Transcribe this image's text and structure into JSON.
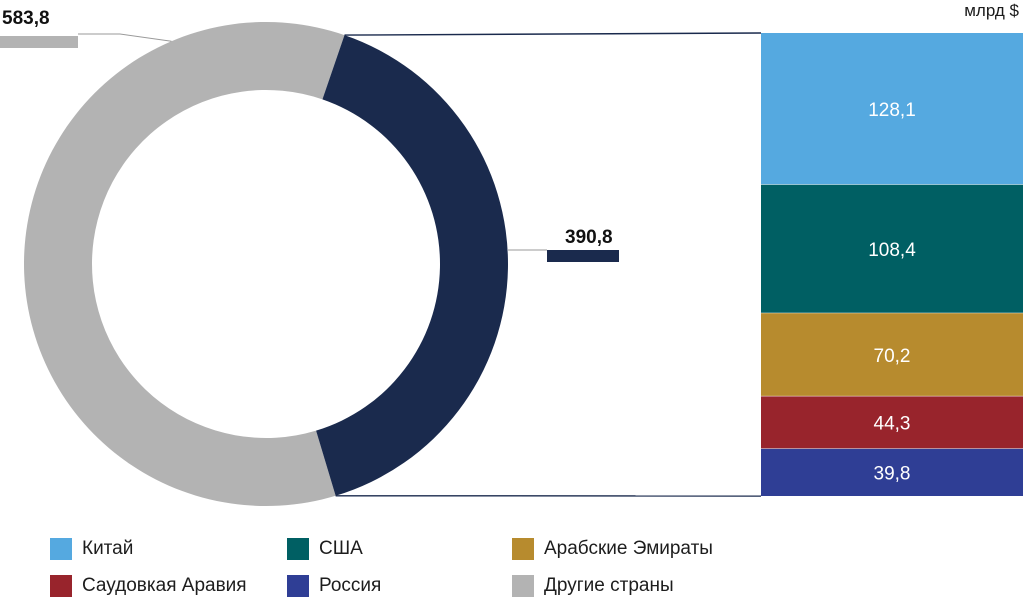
{
  "chart_data": {
    "type": "pie",
    "unit": "млрд $",
    "donut": {
      "slices": [
        {
          "name": "Другие страны",
          "value": 583.8,
          "label": "583,8",
          "color": "#b3b3b3"
        },
        {
          "name": "top5",
          "value": 390.8,
          "label": "390,8",
          "color": "#1a2a4d"
        }
      ]
    },
    "stack": {
      "segments": [
        {
          "name": "Китай",
          "value": 128.1,
          "label": "128,1",
          "color": "#55a9e0"
        },
        {
          "name": "США",
          "value": 108.4,
          "label": "108,4",
          "color": "#005f63"
        },
        {
          "name": "Арабские Эмираты",
          "value": 70.2,
          "label": "70,2",
          "color": "#b78b2e"
        },
        {
          "name": "Саудовкая Аравия",
          "value": 44.3,
          "label": "44,3",
          "color": "#98242c"
        },
        {
          "name": "Россия",
          "value": 39.8,
          "label": "39,8",
          "color": "#2f3e95"
        }
      ]
    },
    "legend": [
      {
        "label": "Китай",
        "color": "#55a9e0"
      },
      {
        "label": "США",
        "color": "#005f63"
      },
      {
        "label": "Арабские Эмираты",
        "color": "#b78b2e"
      },
      {
        "label": "Саудовкая Аравия",
        "color": "#98242c"
      },
      {
        "label": "Россия",
        "color": "#2f3e95"
      },
      {
        "label": "Другие страны",
        "color": "#b3b3b3"
      }
    ]
  }
}
